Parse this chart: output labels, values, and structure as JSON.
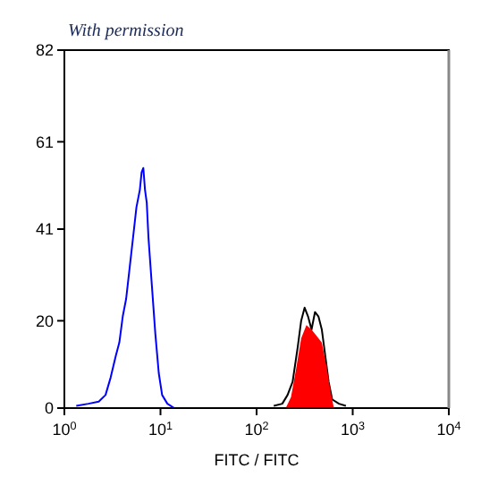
{
  "chart_data": {
    "type": "line",
    "xlabel": "FITC / FITC",
    "annotations": [
      "With permission"
    ],
    "log": "x",
    "xlim": [
      1,
      10000
    ],
    "xticks": [
      {
        "value": 1,
        "label": "10$^{0}$"
      },
      {
        "value": 10,
        "label": "10$^{1}$"
      },
      {
        "value": 100,
        "label": "10$^{2}$"
      },
      {
        "value": 1000,
        "label": "10$^{3}$"
      },
      {
        "value": 10000,
        "label": "10$^{4}$"
      }
    ],
    "ylim": [
      0,
      82
    ],
    "yticks": [
      0,
      20,
      41,
      61,
      82
    ],
    "grid": false,
    "line_style": "solid",
    "marker": "none",
    "series": [
      {
        "color": "#0000ff",
        "x": [
          1.33,
          1.78,
          2.28,
          2.68,
          3.03,
          3.43,
          3.73,
          4.05,
          4.39,
          4.77,
          5.18,
          5.62,
          6.1,
          6.36,
          6.63,
          6.9,
          7.2,
          7.5,
          8.14,
          8.84,
          9.6,
          10.4,
          11.8,
          13.9
        ],
        "values": [
          0.5,
          1,
          1.5,
          3,
          7,
          12,
          15,
          21,
          25,
          32,
          39,
          46,
          50,
          54,
          55,
          50,
          47,
          39,
          28,
          17,
          8,
          3,
          1,
          0
        ]
      },
      {
        "color": "#000000",
        "x": [
          151,
          185,
          210,
          237,
          268,
          291,
          316,
          343,
          373,
          405,
          440,
          477,
          518,
          562,
          611,
          719,
          849
        ],
        "values": [
          0.5,
          1,
          3,
          6,
          14,
          20,
          23,
          21,
          18,
          22,
          21,
          18,
          12,
          6,
          2,
          1,
          0.5
        ]
      },
      {
        "type": "area",
        "color": "#ff0000",
        "x": [
          201,
          228,
          258,
          291,
          330,
          373,
          422,
          477,
          540,
          586,
          637
        ],
        "values": [
          0,
          2.5,
          9,
          16,
          19,
          18,
          16.5,
          15,
          9,
          4,
          0
        ]
      }
    ]
  }
}
